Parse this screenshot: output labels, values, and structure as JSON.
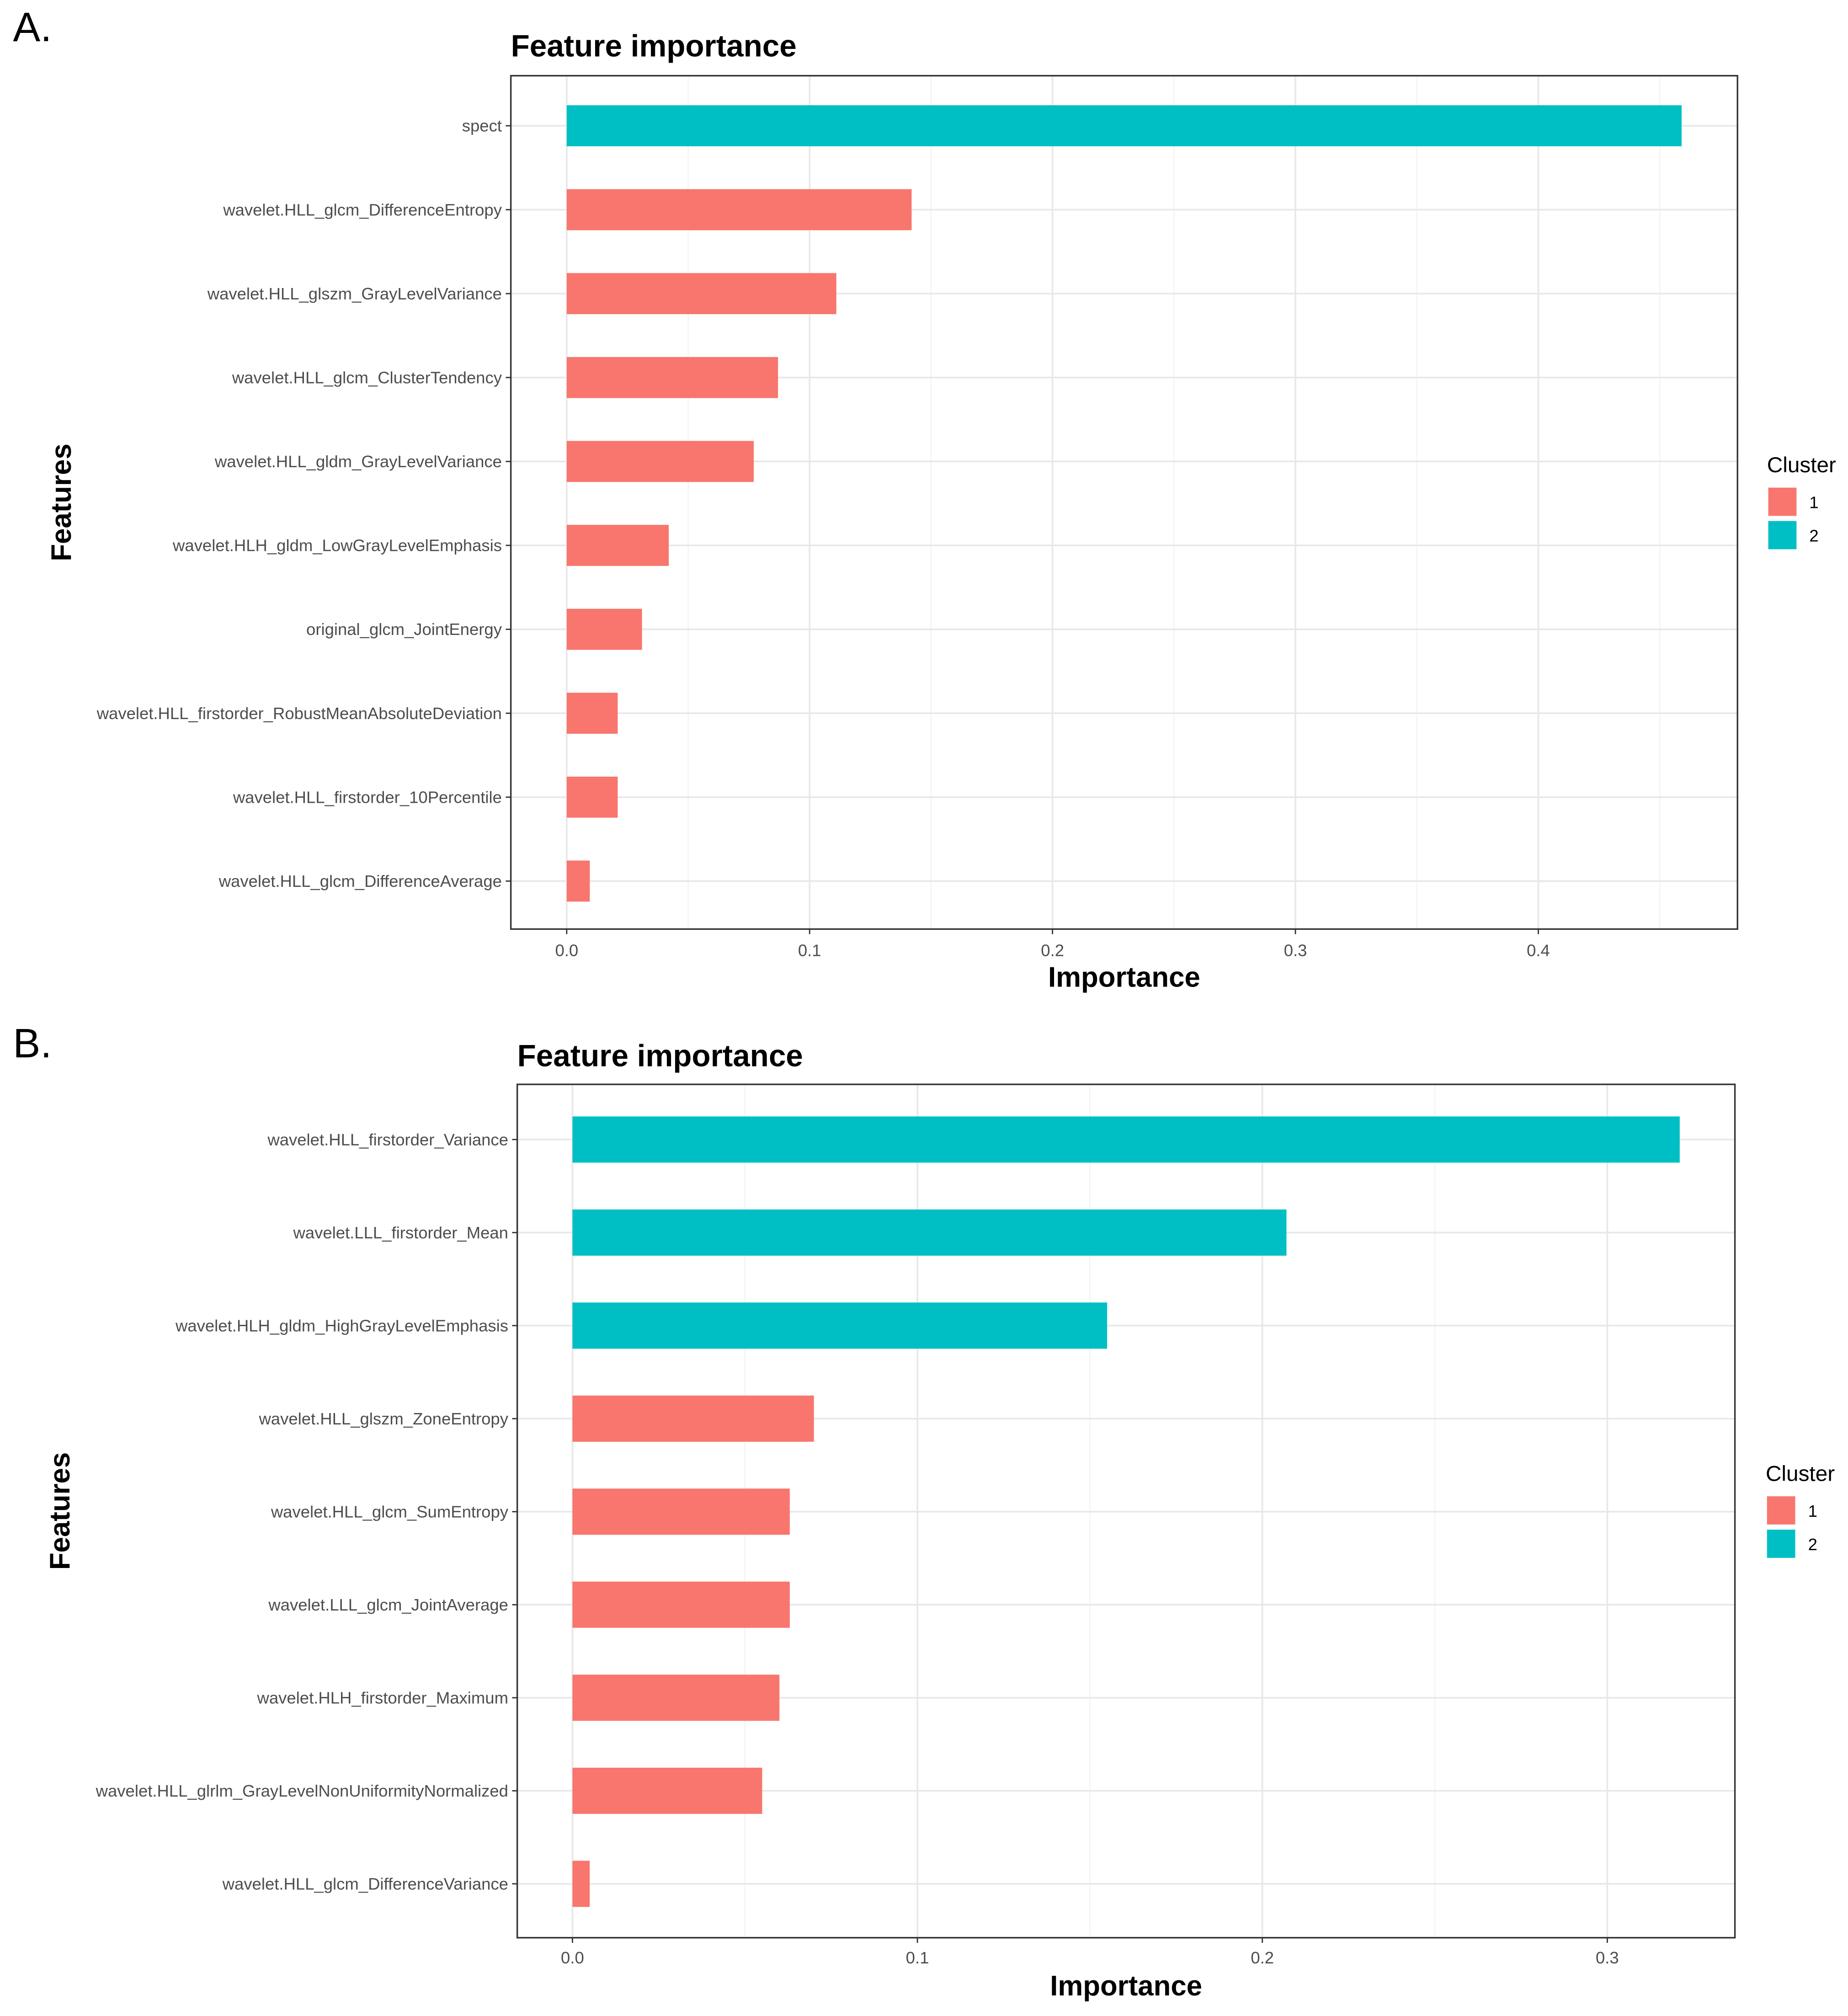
{
  "colors": {
    "1": "#F8766D",
    "2": "#00BFC4"
  },
  "chart_data": [
    {
      "panel": "A.",
      "type": "bar",
      "orientation": "horizontal",
      "title": "Feature importance",
      "xlabel": "Importance",
      "ylabel": "Features",
      "xlim": [
        -0.023,
        0.482
      ],
      "xticks": [
        0.0,
        0.1,
        0.2,
        0.3,
        0.4
      ],
      "xtick_labels": [
        "0.0",
        "0.1",
        "0.2",
        "0.3",
        "0.4"
      ],
      "grid": true,
      "legend": {
        "title": "Cluster",
        "position": "right",
        "entries": [
          "1",
          "2"
        ]
      },
      "categories": [
        "spect",
        "wavelet.HLL_glcm_DifferenceEntropy",
        "wavelet.HLL_glszm_GrayLevelVariance",
        "wavelet.HLL_glcm_ClusterTendency",
        "wavelet.HLL_gldm_GrayLevelVariance",
        "wavelet.HLH_gldm_LowGrayLevelEmphasis",
        "original_glcm_JointEnergy",
        "wavelet.HLL_firstorder_RobustMeanAbsoluteDeviation",
        "wavelet.HLL_firstorder_10Percentile",
        "wavelet.HLL_glcm_DifferenceAverage"
      ],
      "values": [
        0.459,
        0.142,
        0.111,
        0.087,
        0.077,
        0.042,
        0.031,
        0.021,
        0.021,
        0.0095
      ],
      "cluster": [
        "2",
        "1",
        "1",
        "1",
        "1",
        "1",
        "1",
        "1",
        "1",
        "1"
      ]
    },
    {
      "panel": "B.",
      "type": "bar",
      "orientation": "horizontal",
      "title": "Feature importance",
      "xlabel": "Importance",
      "ylabel": "Features",
      "xlim": [
        -0.016,
        0.337
      ],
      "xticks": [
        0.0,
        0.1,
        0.2,
        0.3
      ],
      "xtick_labels": [
        "0.0",
        "0.1",
        "0.2",
        "0.3"
      ],
      "grid": true,
      "legend": {
        "title": "Cluster",
        "position": "right",
        "entries": [
          "1",
          "2"
        ]
      },
      "categories": [
        "wavelet.HLL_firstorder_Variance",
        "wavelet.LLL_firstorder_Mean",
        "wavelet.HLH_gldm_HighGrayLevelEmphasis",
        "wavelet.HLL_glszm_ZoneEntropy",
        "wavelet.HLL_glcm_SumEntropy",
        "wavelet.LLL_glcm_JointAverage",
        "wavelet.HLH_firstorder_Maximum",
        "wavelet.HLL_glrlm_GrayLevelNonUniformityNormalized",
        "wavelet.HLL_glcm_DifferenceVariance"
      ],
      "values": [
        0.321,
        0.207,
        0.155,
        0.07,
        0.063,
        0.063,
        0.06,
        0.055,
        0.005
      ],
      "cluster": [
        "2",
        "2",
        "2",
        "1",
        "1",
        "1",
        "1",
        "1",
        "1"
      ]
    }
  ]
}
